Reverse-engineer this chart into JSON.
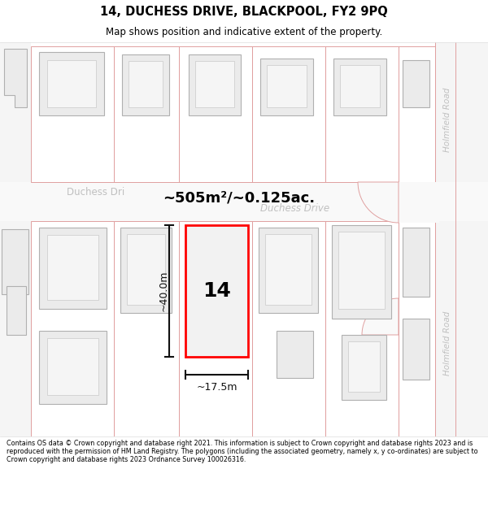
{
  "title_line1": "14, DUCHESS DRIVE, BLACKPOOL, FY2 9PQ",
  "title_line2": "Map shows position and indicative extent of the property.",
  "area_label": "~505m²/~0.125ac.",
  "width_label": "~17.5m",
  "height_label": "~40.0m",
  "property_number": "14",
  "street_label_left": "Duchess Dri",
  "street_label_right": "Duchess Drive",
  "road_label_top": "Holmfield Road",
  "road_label_bottom": "Holmfield Road",
  "footer_text": "Contains OS data © Crown copyright and database right 2021. This information is subject to Crown copyright and database rights 2023 and is reproduced with the permission of HM Land Registry. The polygons (including the associated geometry, namely x, y co-ordinates) are subject to Crown copyright and database rights 2023 Ordnance Survey 100026316.",
  "map_bg": "#ffffff",
  "bldg_fill": "#ebebeb",
  "bldg_edge": "#b0b0b0",
  "lot_edge": "#e0a0a0",
  "highlight_fill": "#f2f2f2",
  "highlight_edge": "#ff0000",
  "road_bg": "#f7f7f7",
  "title_bg": "#ffffff",
  "footer_bg": "#ffffff",
  "street_color": "#c0c0c0",
  "dim_color": "#111111"
}
